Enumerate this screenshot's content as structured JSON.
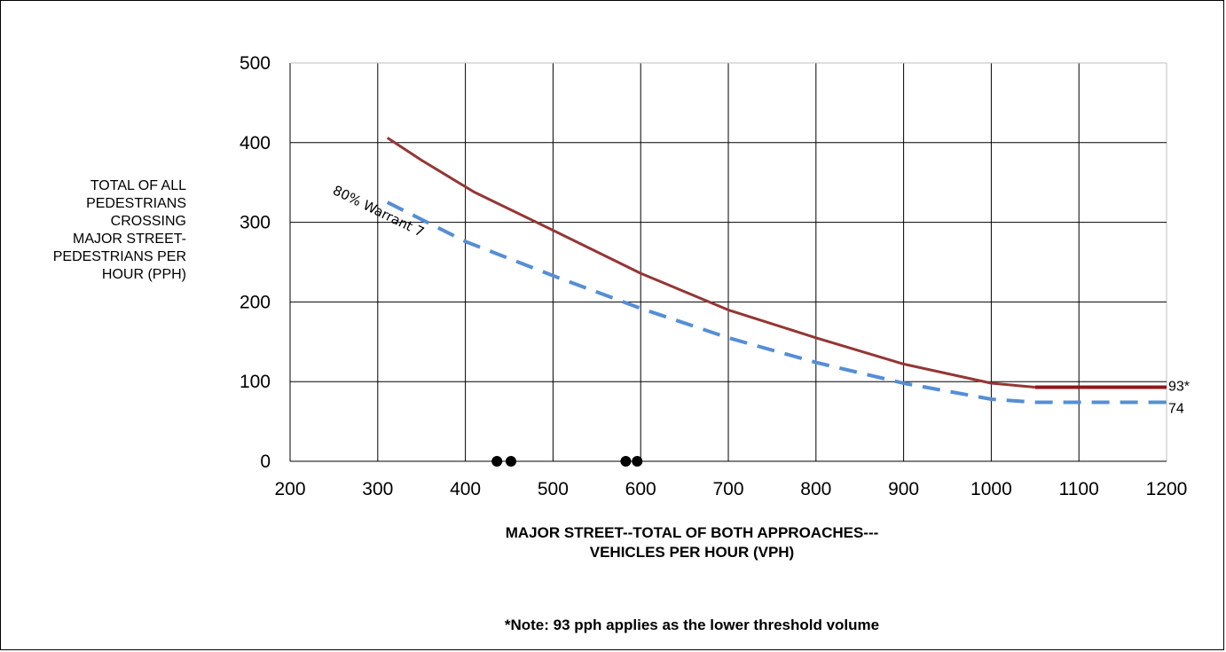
{
  "chart_data": {
    "type": "line",
    "title": "",
    "xlabel": [
      "MAJOR STREET--TOTAL OF BOTH APPROACHES---",
      "VEHICLES PER HOUR (VPH)"
    ],
    "ylabel": [
      "TOTAL OF ALL",
      "PEDESTRIANS",
      "CROSSING",
      "MAJOR STREET-",
      "PEDESTRIANS PER",
      "HOUR (PPH)"
    ],
    "xlim": [
      200,
      1200
    ],
    "ylim": [
      0,
      500
    ],
    "xticks": [
      "200",
      "300",
      "400",
      "500",
      "600",
      "700",
      "800",
      "900",
      "1000",
      "1100",
      "1200"
    ],
    "yticks": [
      "0",
      "100",
      "200",
      "300",
      "400",
      "500"
    ],
    "grid": true,
    "series": [
      {
        "color": "#943634",
        "style": "solid",
        "x": [
          311,
          350,
          410,
          500,
          600,
          700,
          800,
          900,
          1000,
          1050
        ],
        "y": [
          406,
          378,
          338,
          290,
          236,
          190,
          155,
          122,
          98,
          93
        ]
      },
      {
        "color": "#8b1a1a",
        "style": "solid-thick",
        "x": [
          1050,
          1200
        ],
        "y": [
          93,
          93
        ]
      },
      {
        "color": "#558ed5",
        "style": "dashed",
        "x": [
          311,
          400,
          500,
          600,
          700,
          800,
          900,
          1000,
          1050,
          1100,
          1200
        ],
        "y": [
          325,
          276,
          233,
          192,
          155,
          124,
          98,
          78,
          74,
          74,
          74
        ]
      }
    ],
    "points": [
      {
        "x": 436,
        "y": 0
      },
      {
        "x": 452,
        "y": 0
      },
      {
        "x": 583,
        "y": 0
      },
      {
        "x": 596,
        "y": 0
      }
    ],
    "end_labels": [
      "93*",
      "74"
    ],
    "annotation": "80% Warrant 7"
  },
  "note": "*Note:  93  pph applies as the lower threshold volume"
}
